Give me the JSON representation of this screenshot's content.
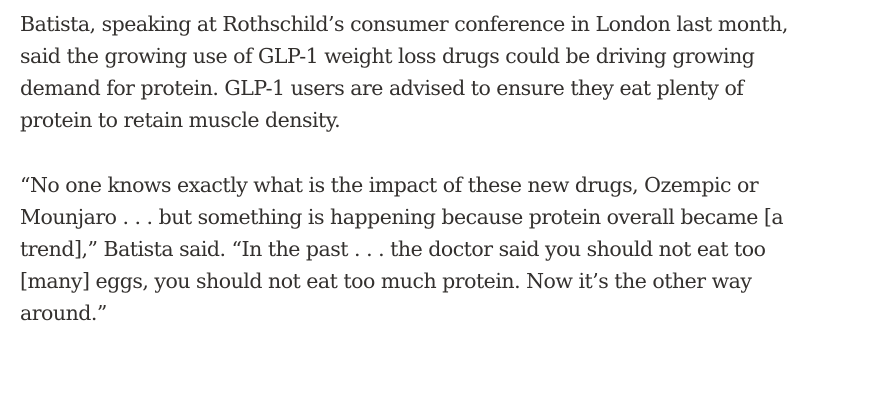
{
  "article": {
    "paragraphs": [
      {
        "lines": [
          "Batista, speaking at Rothschild’s consumer conference in London last month,",
          "said the growing use of GLP-1 weight loss drugs could be driving growing",
          "demand for protein. GLP-1 users are advised to ensure they eat plenty of",
          "protein to retain muscle density."
        ]
      },
      {
        "lines": [
          "“No one knows exactly what is the impact of these new drugs, Ozempic or",
          "Mounjaro . . . but something is happening because protein overall became [a",
          "trend],” Batista said. “In the past . . . the doctor said you should not eat too",
          "[many] eggs, you should not eat too much protein. Now it’s the other way",
          "around.”"
        ]
      }
    ]
  }
}
